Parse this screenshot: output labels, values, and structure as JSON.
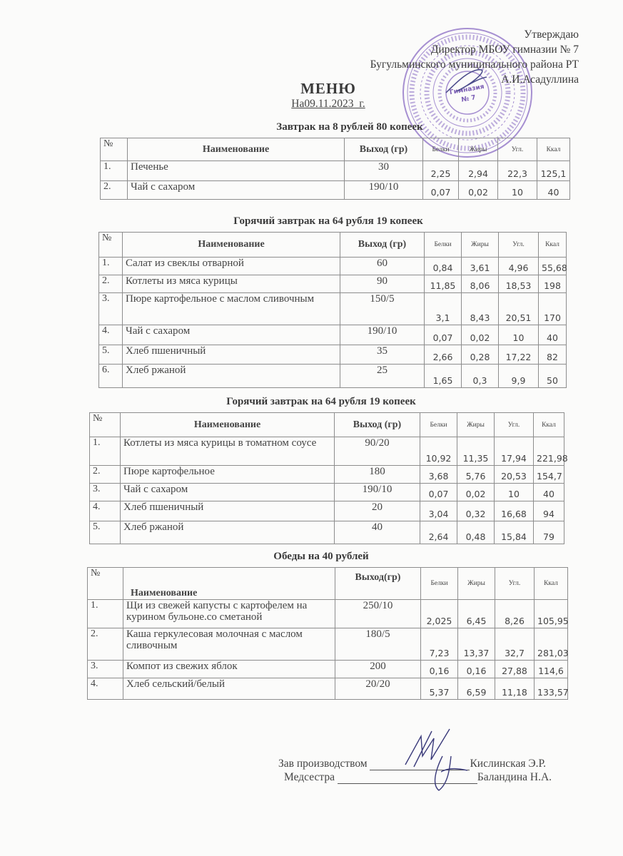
{
  "header": {
    "approve_lines": [
      "Утверждаю",
      "Директор МБОУ гимназии № 7",
      "Бугульминского муниципального района РТ",
      "А.И.Асадуллина"
    ],
    "title": "МЕНЮ",
    "date": "На09.11.2023_г.",
    "stamp_text": "Гимназия № 7",
    "stamp_color": "#8a6cc4"
  },
  "columns": {
    "num": "№",
    "name": "Наименование",
    "yield": "Выход (гр)",
    "yield_alt": "Выход(гр)",
    "protein": "Белки",
    "fat": "Жиры",
    "carbs": "Угл.",
    "kcal": "Ккал"
  },
  "sections": [
    {
      "title": "Завтрак на 8 рублей 80 копеек",
      "rows": [
        [
          "1.",
          "Печенье",
          "30",
          "2,25",
          "2,94",
          "22,3",
          "125,1"
        ],
        [
          "2.",
          "Чай с сахаром",
          "190/10",
          "0,07",
          "0,02",
          "10",
          "40"
        ]
      ]
    },
    {
      "title": "Горячий завтрак на 64 рубля 19 копеек",
      "rows": [
        [
          "1.",
          "Салат из свеклы отварной",
          "60",
          "0,84",
          "3,61",
          "4,96",
          "55,68"
        ],
        [
          "2.",
          "Котлеты из мяса курицы",
          "90",
          "11,85",
          "8,06",
          "18,53",
          "198"
        ],
        [
          "3.",
          "Пюре картофельное с маслом сливочным",
          "150/5",
          "3,1",
          "8,43",
          "20,51",
          "170"
        ],
        [
          "4.",
          "Чай с сахаром",
          "190/10",
          "0,07",
          "0,02",
          "10",
          "40"
        ],
        [
          "5.",
          "Хлеб пшеничный",
          "35",
          "2,66",
          "0,28",
          "17,22",
          "82"
        ],
        [
          "6.",
          "Хлеб ржаной",
          "25",
          "1,65",
          "0,3",
          "9,9",
          "50"
        ]
      ]
    },
    {
      "title": "Горячий завтрак на 64 рубля 19 копеек",
      "rows": [
        [
          "1.",
          "Котлеты из мяса курицы в томатном соусе",
          "90/20",
          "10,92",
          "11,35",
          "17,94",
          "221,98"
        ],
        [
          "2.",
          "Пюре картофельное",
          "180",
          "3,68",
          "5,76",
          "20,53",
          "154,7"
        ],
        [
          "3.",
          "Чай с сахаром",
          "190/10",
          "0,07",
          "0,02",
          "10",
          "40"
        ],
        [
          "4.",
          "Хлеб пшеничный",
          "20",
          "3,04",
          "0,32",
          "16,68",
          "94"
        ],
        [
          "5.",
          "Хлеб ржаной",
          "40",
          "2,64",
          "0,48",
          "15,84",
          "79"
        ]
      ]
    },
    {
      "title": "Обеды на 40 рублей",
      "rows": [
        [
          "1.",
          "Щи из свежей капусты с картофелем на курином бульоне.со сметаной",
          "250/10",
          "2,025",
          "6,45",
          "8,26",
          "105,95"
        ],
        [
          "2.",
          "Каша геркулесовая молочная с маслом сливочным",
          "180/5",
          "7,23",
          "13,37",
          "32,7",
          "281,03"
        ],
        [
          "3.",
          "Компот из свежих яблок",
          "200",
          "0,16",
          "0,16",
          "27,88",
          "114,6"
        ],
        [
          "4.",
          "Хлеб сельский/белый",
          "20/20",
          "5,37",
          "6,59",
          "11,18",
          "133,57"
        ]
      ]
    }
  ],
  "signatures": [
    {
      "role": "Зав производством",
      "name": "Кислинская Э.Р."
    },
    {
      "role": "Медсестра",
      "name": "Баландина Н.А."
    }
  ]
}
